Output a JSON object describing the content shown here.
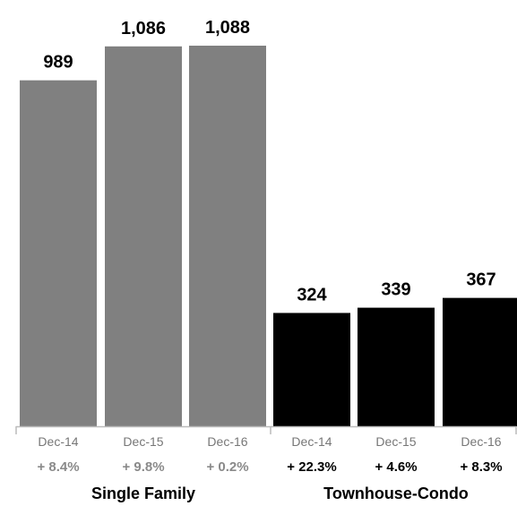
{
  "chart_data": {
    "type": "bar",
    "groups": [
      {
        "name": "Single Family",
        "color": "#808080",
        "change_color": "#8a8a8a",
        "bars": [
          {
            "category": "Dec-14",
            "value": 989,
            "value_label": "989",
            "change": "+ 8.4%"
          },
          {
            "category": "Dec-15",
            "value": 1086,
            "value_label": "1,086",
            "change": "+ 9.8%"
          },
          {
            "category": "Dec-16",
            "value": 1088,
            "value_label": "1,088",
            "change": "+ 0.2%"
          }
        ]
      },
      {
        "name": "Townhouse-Condo",
        "color": "#000000",
        "change_color": "#000000",
        "bars": [
          {
            "category": "Dec-14",
            "value": 324,
            "value_label": "324",
            "change": "+ 22.3%"
          },
          {
            "category": "Dec-15",
            "value": 339,
            "value_label": "339",
            "change": "+ 4.6%"
          },
          {
            "category": "Dec-16",
            "value": 367,
            "value_label": "367",
            "change": "+ 8.3%"
          }
        ]
      }
    ],
    "ylim": [
      0,
      1088
    ],
    "grid": false,
    "colors": {
      "axis": "#bbbbbb",
      "tick_label": "#777777",
      "value_label": "#000000",
      "group_label": "#000000"
    }
  }
}
